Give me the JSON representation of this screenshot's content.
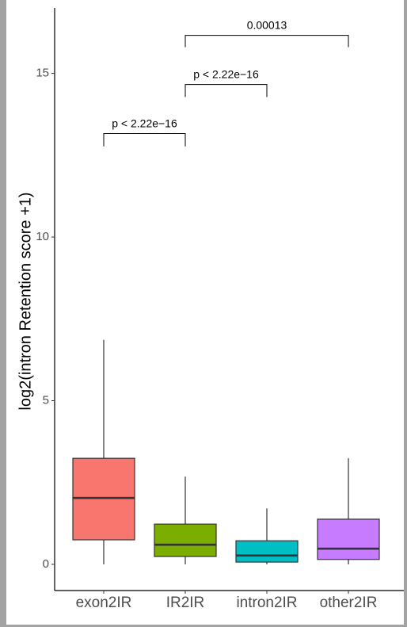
{
  "chart_data": {
    "type": "box",
    "y_label": "log2(intron Retention score +1)",
    "categories": [
      "exon2IR",
      "IR2IR",
      "intron2IR",
      "other2IR"
    ],
    "colors": [
      "#F8766D",
      "#7CAE00",
      "#00BFC4",
      "#C77CFF"
    ],
    "boxes": [
      {
        "min": 0,
        "q1": 0.75,
        "median": 2.03,
        "q3": 3.24,
        "max": 6.86
      },
      {
        "min": 0,
        "q1": 0.24,
        "median": 0.6,
        "q3": 1.23,
        "max": 2.68
      },
      {
        "min": 0,
        "q1": 0.07,
        "median": 0.27,
        "q3": 0.72,
        "max": 1.71
      },
      {
        "min": 0,
        "q1": 0.15,
        "median": 0.48,
        "q3": 1.38,
        "max": 3.24
      }
    ],
    "ylim": [
      -0.8,
      17
    ],
    "yticks": [
      0,
      5,
      10,
      15
    ],
    "annotations": [
      {
        "label": "p < 2.22e−16",
        "groups": [
          "exon2IR",
          "IR2IR"
        ],
        "y": 13.16,
        "tip": 12.77
      },
      {
        "label": "p < 2.22e−16",
        "groups": [
          "IR2IR",
          "intron2IR"
        ],
        "y": 14.66,
        "tip": 14.28
      },
      {
        "label": "0.00013",
        "groups": [
          "IR2IR",
          "other2IR"
        ],
        "y": 16.16,
        "tip": 15.8
      }
    ]
  }
}
